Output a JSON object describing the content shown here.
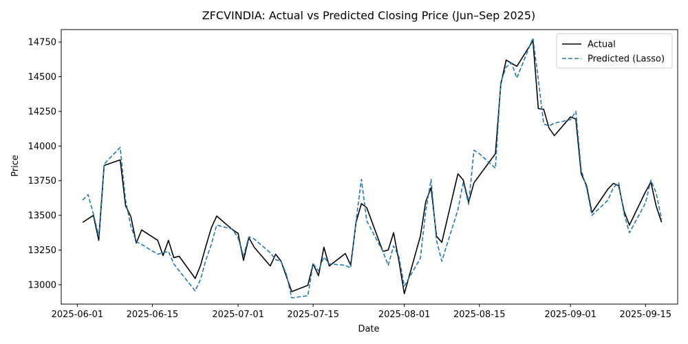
{
  "chart_data": {
    "type": "line",
    "title": "ZFCVINDIA: Actual vs Predicted Closing Price (Jun–Sep 2025)",
    "xlabel": "Date",
    "ylabel": "Price",
    "x_ticks": [
      "2025-06-01",
      "2025-06-15",
      "2025-07-01",
      "2025-07-15",
      "2025-08-01",
      "2025-08-15",
      "2025-09-01",
      "2025-09-15"
    ],
    "y_ticks": [
      13000,
      13250,
      13500,
      13750,
      14000,
      14250,
      14500,
      14750
    ],
    "xlim": [
      "2025-05-29",
      "2025-09-21"
    ],
    "ylim": [
      12860,
      14840
    ],
    "grid": false,
    "legend_position": "top-right",
    "series": [
      {
        "name": "Actual",
        "color": "#000000",
        "dash": "solid",
        "points": [
          [
            "2025-06-02",
            13450
          ],
          [
            "2025-06-04",
            13500
          ],
          [
            "2025-06-05",
            13320
          ],
          [
            "2025-06-06",
            13860
          ],
          [
            "2025-06-09",
            13900
          ],
          [
            "2025-06-10",
            13570
          ],
          [
            "2025-06-11",
            13490
          ],
          [
            "2025-06-12",
            13300
          ],
          [
            "2025-06-13",
            13395
          ],
          [
            "2025-06-16",
            13320
          ],
          [
            "2025-06-17",
            13210
          ],
          [
            "2025-06-18",
            13320
          ],
          [
            "2025-06-19",
            13195
          ],
          [
            "2025-06-20",
            13205
          ],
          [
            "2025-06-23",
            13045
          ],
          [
            "2025-06-24",
            13140
          ],
          [
            "2025-06-25",
            13280
          ],
          [
            "2025-06-26",
            13410
          ],
          [
            "2025-06-27",
            13495
          ],
          [
            "2025-06-30",
            13395
          ],
          [
            "2025-07-01",
            13370
          ],
          [
            "2025-07-02",
            13175
          ],
          [
            "2025-07-03",
            13340
          ],
          [
            "2025-07-04",
            13270
          ],
          [
            "2025-07-07",
            13135
          ],
          [
            "2025-07-08",
            13220
          ],
          [
            "2025-07-09",
            13170
          ],
          [
            "2025-07-11",
            12950
          ],
          [
            "2025-07-14",
            12995
          ],
          [
            "2025-07-15",
            13150
          ],
          [
            "2025-07-16",
            13065
          ],
          [
            "2025-07-17",
            13270
          ],
          [
            "2025-07-18",
            13135
          ],
          [
            "2025-07-21",
            13225
          ],
          [
            "2025-07-22",
            13140
          ],
          [
            "2025-07-23",
            13450
          ],
          [
            "2025-07-24",
            13585
          ],
          [
            "2025-07-25",
            13555
          ],
          [
            "2025-07-28",
            13240
          ],
          [
            "2025-07-29",
            13250
          ],
          [
            "2025-07-30",
            13375
          ],
          [
            "2025-07-31",
            13170
          ],
          [
            "2025-08-01",
            12935
          ],
          [
            "2025-08-04",
            13350
          ],
          [
            "2025-08-05",
            13600
          ],
          [
            "2025-08-06",
            13700
          ],
          [
            "2025-08-07",
            13350
          ],
          [
            "2025-08-08",
            13305
          ],
          [
            "2025-08-11",
            13800
          ],
          [
            "2025-08-12",
            13755
          ],
          [
            "2025-08-13",
            13595
          ],
          [
            "2025-08-14",
            13735
          ],
          [
            "2025-08-18",
            13945
          ],
          [
            "2025-08-19",
            14445
          ],
          [
            "2025-08-20",
            14620
          ],
          [
            "2025-08-22",
            14575
          ],
          [
            "2025-08-25",
            14760
          ],
          [
            "2025-08-26",
            14270
          ],
          [
            "2025-08-27",
            14265
          ],
          [
            "2025-08-28",
            14130
          ],
          [
            "2025-08-29",
            14075
          ],
          [
            "2025-09-01",
            14210
          ],
          [
            "2025-09-02",
            14195
          ],
          [
            "2025-09-03",
            13800
          ],
          [
            "2025-09-04",
            13715
          ],
          [
            "2025-09-05",
            13520
          ],
          [
            "2025-09-08",
            13690
          ],
          [
            "2025-09-09",
            13730
          ],
          [
            "2025-09-10",
            13715
          ],
          [
            "2025-09-11",
            13530
          ],
          [
            "2025-09-12",
            13430
          ],
          [
            "2025-09-15",
            13670
          ],
          [
            "2025-09-16",
            13740
          ],
          [
            "2025-09-17",
            13565
          ],
          [
            "2025-09-18",
            13450
          ]
        ]
      },
      {
        "name": "Predicted (Lasso)",
        "color": "#1f77b4",
        "dash": "dashed",
        "points": [
          [
            "2025-06-02",
            13610
          ],
          [
            "2025-06-03",
            13650
          ],
          [
            "2025-06-04",
            13510
          ],
          [
            "2025-06-05",
            13350
          ],
          [
            "2025-06-06",
            13870
          ],
          [
            "2025-06-09",
            13990
          ],
          [
            "2025-06-10",
            13610
          ],
          [
            "2025-06-11",
            13420
          ],
          [
            "2025-06-12",
            13310
          ],
          [
            "2025-06-13",
            13290
          ],
          [
            "2025-06-16",
            13220
          ],
          [
            "2025-06-17",
            13230
          ],
          [
            "2025-06-18",
            13240
          ],
          [
            "2025-06-19",
            13150
          ],
          [
            "2025-06-20",
            13100
          ],
          [
            "2025-06-23",
            12955
          ],
          [
            "2025-06-24",
            13040
          ],
          [
            "2025-06-25",
            13180
          ],
          [
            "2025-06-26",
            13290
          ],
          [
            "2025-06-27",
            13430
          ],
          [
            "2025-06-30",
            13400
          ],
          [
            "2025-07-01",
            13335
          ],
          [
            "2025-07-02",
            13210
          ],
          [
            "2025-07-03",
            13345
          ],
          [
            "2025-07-04",
            13330
          ],
          [
            "2025-07-07",
            13230
          ],
          [
            "2025-07-08",
            13180
          ],
          [
            "2025-07-09",
            13170
          ],
          [
            "2025-07-10",
            13075
          ],
          [
            "2025-07-11",
            12905
          ],
          [
            "2025-07-14",
            12920
          ],
          [
            "2025-07-15",
            13150
          ],
          [
            "2025-07-16",
            13100
          ],
          [
            "2025-07-17",
            13200
          ],
          [
            "2025-07-18",
            13150
          ],
          [
            "2025-07-21",
            13140
          ],
          [
            "2025-07-22",
            13120
          ],
          [
            "2025-07-23",
            13460
          ],
          [
            "2025-07-24",
            13760
          ],
          [
            "2025-07-25",
            13460
          ],
          [
            "2025-07-28",
            13240
          ],
          [
            "2025-07-29",
            13140
          ],
          [
            "2025-07-30",
            13280
          ],
          [
            "2025-07-31",
            13200
          ],
          [
            "2025-08-01",
            12990
          ],
          [
            "2025-08-04",
            13190
          ],
          [
            "2025-08-05",
            13530
          ],
          [
            "2025-08-06",
            13760
          ],
          [
            "2025-08-07",
            13320
          ],
          [
            "2025-08-08",
            13170
          ],
          [
            "2025-08-11",
            13540
          ],
          [
            "2025-08-12",
            13740
          ],
          [
            "2025-08-13",
            13580
          ],
          [
            "2025-08-14",
            13970
          ],
          [
            "2025-08-15",
            13945
          ],
          [
            "2025-08-18",
            13840
          ],
          [
            "2025-08-19",
            14460
          ],
          [
            "2025-08-20",
            14570
          ],
          [
            "2025-08-21",
            14600
          ],
          [
            "2025-08-22",
            14490
          ],
          [
            "2025-08-25",
            14780
          ],
          [
            "2025-08-26",
            14480
          ],
          [
            "2025-08-27",
            14160
          ],
          [
            "2025-08-28",
            14145
          ],
          [
            "2025-08-29",
            14165
          ],
          [
            "2025-09-01",
            14190
          ],
          [
            "2025-09-02",
            14250
          ],
          [
            "2025-09-03",
            13830
          ],
          [
            "2025-09-04",
            13700
          ],
          [
            "2025-09-05",
            13500
          ],
          [
            "2025-09-08",
            13610
          ],
          [
            "2025-09-09",
            13700
          ],
          [
            "2025-09-10",
            13735
          ],
          [
            "2025-09-11",
            13510
          ],
          [
            "2025-09-12",
            13375
          ],
          [
            "2025-09-15",
            13590
          ],
          [
            "2025-09-16",
            13755
          ],
          [
            "2025-09-17",
            13660
          ],
          [
            "2025-09-18",
            13470
          ]
        ]
      }
    ]
  }
}
